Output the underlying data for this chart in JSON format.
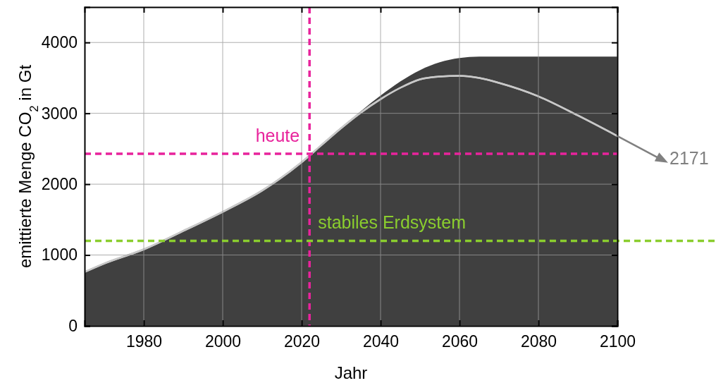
{
  "chart_data": {
    "type": "area",
    "xlabel": "Jahr",
    "ylabel": "emittierte Menge CO$_{2}$ in Gt",
    "xlim": [
      1965,
      2100
    ],
    "ylim": [
      0,
      4500
    ],
    "xticks": [
      1980,
      2000,
      2020,
      2040,
      2060,
      2080,
      2100
    ],
    "yticks": [
      0,
      1000,
      2000,
      3000,
      4000
    ],
    "grid": true,
    "series": [
      {
        "color": "#404040",
        "x": [
          1965,
          1970,
          1980,
          1990,
          2000,
          2010,
          2020,
          2025,
          2030,
          2035,
          2040,
          2045,
          2050,
          2055,
          2060,
          2065,
          2070,
          2080,
          2090,
          2100
        ],
        "values": [
          760,
          880,
          1080,
          1340,
          1610,
          1910,
          2310,
          2560,
          2800,
          3030,
          3250,
          3450,
          3610,
          3720,
          3780,
          3800,
          3800,
          3800,
          3800,
          3800
        ]
      },
      {
        "type": "line",
        "color": "#c8c8c8",
        "x": [
          1965,
          1970,
          1980,
          1990,
          2000,
          2010,
          2020,
          2025,
          2030,
          2035,
          2040,
          2045,
          2050,
          2055,
          2060,
          2065,
          2070,
          2080,
          2090,
          2100
        ],
        "values": [
          760,
          880,
          1080,
          1340,
          1610,
          1910,
          2310,
          2550,
          2790,
          3010,
          3200,
          3360,
          3480,
          3520,
          3530,
          3500,
          3430,
          3240,
          2970,
          2680
        ]
      }
    ],
    "ref_lines": [
      {
        "axis": "x",
        "value": 2022,
        "color": "#e8239c",
        "line_style": "dashed"
      },
      {
        "axis": "y",
        "value": 2430,
        "label": "heute",
        "color": "#e8239c",
        "line_style": "dashed"
      },
      {
        "axis": "y",
        "value": 1200,
        "label": "stabiles Erdsystem",
        "color": "#8acd2e",
        "line_style": "dashed"
      }
    ],
    "annotations": [
      "2171"
    ]
  }
}
